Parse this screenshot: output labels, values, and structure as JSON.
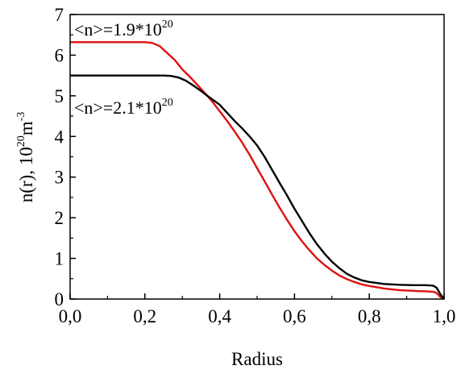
{
  "chart_data": {
    "type": "line",
    "title": "",
    "xlabel": "Radius",
    "ylabel": {
      "base": "n(r), 10",
      "exp1": "20",
      "unit": "m",
      "exp2": "-3"
    },
    "xlim": [
      0.0,
      1.0
    ],
    "ylim": [
      0,
      7
    ],
    "xticks": [
      "0,0",
      "0,2",
      "0,4",
      "0,6",
      "0,8",
      "1,0"
    ],
    "yticks": [
      "0",
      "1",
      "2",
      "3",
      "4",
      "5",
      "6",
      "7"
    ],
    "grid": false,
    "annotations": [
      {
        "base": "<n>=1.9*10",
        "exp": "20"
      },
      {
        "base": "<n>=2.1*10",
        "exp": "20"
      }
    ],
    "series": [
      {
        "color": "#e01010",
        "x": [
          0.0,
          0.05,
          0.1,
          0.15,
          0.2,
          0.22,
          0.24,
          0.26,
          0.28,
          0.3,
          0.32,
          0.34,
          0.36,
          0.38,
          0.4,
          0.42,
          0.44,
          0.46,
          0.48,
          0.5,
          0.52,
          0.54,
          0.56,
          0.58,
          0.6,
          0.62,
          0.64,
          0.66,
          0.68,
          0.7,
          0.72,
          0.74,
          0.76,
          0.78,
          0.8,
          0.84,
          0.88,
          0.92,
          0.95,
          0.97,
          0.98,
          0.99,
          1.0
        ],
        "y": [
          6.32,
          6.32,
          6.32,
          6.32,
          6.32,
          6.3,
          6.22,
          6.05,
          5.88,
          5.65,
          5.47,
          5.27,
          5.07,
          4.86,
          4.62,
          4.38,
          4.12,
          3.85,
          3.55,
          3.22,
          2.9,
          2.57,
          2.25,
          1.95,
          1.67,
          1.42,
          1.2,
          1.0,
          0.84,
          0.7,
          0.58,
          0.49,
          0.42,
          0.36,
          0.32,
          0.26,
          0.22,
          0.2,
          0.19,
          0.18,
          0.15,
          0.05,
          0.0
        ]
      },
      {
        "color": "#000000",
        "x": [
          0.0,
          0.05,
          0.1,
          0.15,
          0.2,
          0.25,
          0.27,
          0.29,
          0.31,
          0.33,
          0.35,
          0.37,
          0.4,
          0.42,
          0.44,
          0.46,
          0.48,
          0.5,
          0.52,
          0.54,
          0.56,
          0.58,
          0.6,
          0.62,
          0.64,
          0.66,
          0.68,
          0.7,
          0.72,
          0.74,
          0.76,
          0.78,
          0.8,
          0.84,
          0.88,
          0.92,
          0.95,
          0.97,
          0.98,
          0.99,
          1.0
        ],
        "y": [
          5.5,
          5.5,
          5.5,
          5.5,
          5.5,
          5.5,
          5.49,
          5.45,
          5.37,
          5.25,
          5.12,
          4.98,
          4.78,
          4.58,
          4.38,
          4.2,
          4.0,
          3.78,
          3.5,
          3.18,
          2.86,
          2.55,
          2.22,
          1.92,
          1.62,
          1.35,
          1.12,
          0.92,
          0.76,
          0.62,
          0.53,
          0.46,
          0.42,
          0.37,
          0.35,
          0.34,
          0.34,
          0.33,
          0.28,
          0.12,
          0.0
        ]
      }
    ]
  }
}
